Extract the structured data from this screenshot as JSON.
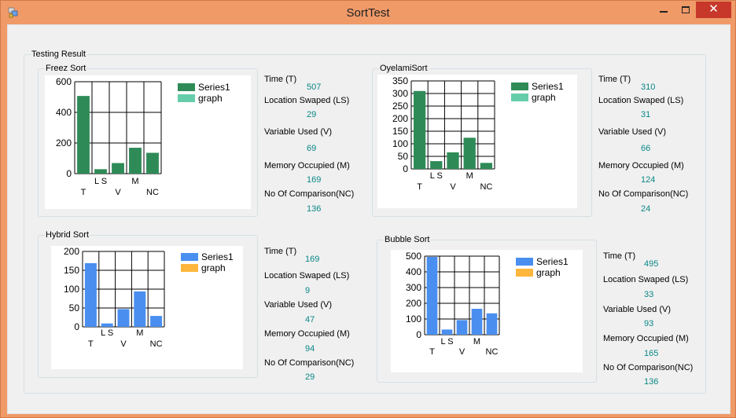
{
  "window": {
    "title": "SortTest",
    "close_glyph": "✕"
  },
  "main_group": {
    "label": "Testing Result"
  },
  "colors": {
    "green": "#2e8b57",
    "mint": "#66cdaa",
    "blue": "#4a8ff0",
    "orange": "#ffb63c",
    "value_teal": "#0a8787"
  },
  "stat_labels": {
    "time": "Time (T)",
    "location_swaped": "Location Swaped (LS)",
    "variable_used": "Variable Used (V)",
    "memory_occupied": "Memory Occupied (M)",
    "no_of_comparison": "No Of Comparison(NC)"
  },
  "panels": [
    {
      "label": "Freez Sort",
      "stats": {
        "time": "507",
        "location_swaped": "29",
        "variable_used": "69",
        "memory_occupied": "169",
        "no_of_comparison": "136"
      },
      "chart_data": {
        "type": "bar",
        "categories": [
          "T",
          "LS",
          "V",
          "M",
          "NC"
        ],
        "category_labels": [
          "T",
          "L S",
          "V",
          "M",
          "NC"
        ],
        "series": [
          {
            "name": "Series1",
            "values": [
              507,
              29,
              69,
              169,
              136
            ]
          }
        ],
        "legend": [
          "Series1",
          "graph"
        ],
        "yticks": [
          0,
          200,
          400,
          600
        ],
        "ylim": [
          0,
          600
        ],
        "grid": true,
        "legend_position": "top-right",
        "bar_color": "#2e8b57",
        "legend_colors": [
          "#2e8b57",
          "#66cdaa"
        ]
      }
    },
    {
      "label": "OyelamiSort",
      "stats": {
        "time": "310",
        "location_swaped": "31",
        "variable_used": "66",
        "memory_occupied": "124",
        "no_of_comparison": "24"
      },
      "chart_data": {
        "type": "bar",
        "categories": [
          "T",
          "LS",
          "V",
          "M",
          "NC"
        ],
        "category_labels": [
          "T",
          "L S",
          "V",
          "M",
          "NC"
        ],
        "series": [
          {
            "name": "Series1",
            "values": [
              310,
              31,
              66,
              124,
              24
            ]
          }
        ],
        "legend": [
          "Series1",
          "graph"
        ],
        "yticks": [
          0,
          50,
          100,
          150,
          200,
          250,
          300,
          350
        ],
        "ylim": [
          0,
          350
        ],
        "grid": true,
        "legend_position": "top-right",
        "bar_color": "#2e8b57",
        "legend_colors": [
          "#2e8b57",
          "#66cdaa"
        ]
      }
    },
    {
      "label": "Hybrid Sort",
      "stats": {
        "time": "169",
        "location_swaped": "9",
        "variable_used": "47",
        "memory_occupied": "94",
        "no_of_comparison": "29"
      },
      "chart_data": {
        "type": "bar",
        "categories": [
          "T",
          "LS",
          "V",
          "M",
          "NC"
        ],
        "category_labels": [
          "T",
          "L S",
          "V",
          "M",
          "NC"
        ],
        "series": [
          {
            "name": "Series1",
            "values": [
              169,
              9,
              47,
              94,
              29
            ]
          }
        ],
        "legend": [
          "Series1",
          "graph"
        ],
        "yticks": [
          0,
          50,
          100,
          150,
          200
        ],
        "ylim": [
          0,
          200
        ],
        "grid": true,
        "legend_position": "top-right",
        "bar_color": "#4a8ff0",
        "legend_colors": [
          "#4a8ff0",
          "#ffb63c"
        ]
      }
    },
    {
      "label": "Bubble Sort",
      "stats": {
        "time": "495",
        "location_swaped": "33",
        "variable_used": "93",
        "memory_occupied": "165",
        "no_of_comparison": "136"
      },
      "chart_data": {
        "type": "bar",
        "categories": [
          "T",
          "LS",
          "V",
          "M",
          "NC"
        ],
        "category_labels": [
          "T",
          "L S",
          "V",
          "M",
          "NC"
        ],
        "series": [
          {
            "name": "Series1",
            "values": [
              495,
              33,
              93,
              165,
              136
            ]
          }
        ],
        "legend": [
          "Series1",
          "graph"
        ],
        "yticks": [
          0,
          100,
          200,
          300,
          400,
          500
        ],
        "ylim": [
          0,
          500
        ],
        "grid": true,
        "legend_position": "top-right",
        "bar_color": "#4a8ff0",
        "legend_colors": [
          "#4a8ff0",
          "#ffb63c"
        ]
      }
    }
  ]
}
